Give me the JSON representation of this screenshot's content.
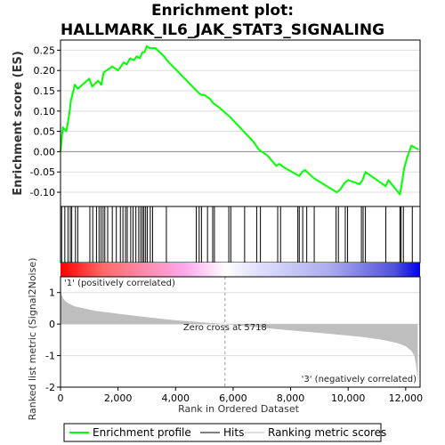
{
  "chart_data": {
    "type": "line",
    "title_line1": "Enrichment plot:",
    "title_line2": "HALLMARK_IL6_JAK_STAT3_SIGNALING",
    "top_panel": {
      "ylabel": "Enrichment score (ES)",
      "ylim": [
        -0.135,
        0.275
      ],
      "yticks": [
        0.25,
        0.2,
        0.15,
        0.1,
        0.05,
        0.0,
        -0.05,
        -0.1
      ],
      "ytick_labels": [
        "0.25",
        "0.20",
        "0.15",
        "0.10",
        "0.05",
        "0.00",
        "-0.05",
        "-0.10"
      ],
      "series_name": "Enrichment profile",
      "color": "#00ff00",
      "x": [
        0,
        80,
        200,
        300,
        360,
        500,
        600,
        1000,
        1100,
        1300,
        1420,
        1500,
        1600,
        1800,
        2000,
        2100,
        2200,
        2300,
        2420,
        2550,
        2650,
        2750,
        2850,
        2920,
        3000,
        3100,
        3300,
        3600,
        3700,
        4800,
        4900,
        5000,
        5200,
        5300,
        5500,
        5900,
        6300,
        6700,
        6900,
        7200,
        7500,
        7600,
        7800,
        8300,
        8400,
        8500,
        8800,
        9600,
        9700,
        9900,
        10000,
        10400,
        10500,
        10600,
        11300,
        11400,
        11800,
        11850,
        11950,
        12050,
        12200,
        12450
      ],
      "y": [
        0.0,
        0.06,
        0.05,
        0.09,
        0.125,
        0.165,
        0.155,
        0.18,
        0.16,
        0.175,
        0.165,
        0.195,
        0.2,
        0.21,
        0.2,
        0.21,
        0.22,
        0.215,
        0.23,
        0.225,
        0.235,
        0.23,
        0.245,
        0.245,
        0.26,
        0.255,
        0.255,
        0.235,
        0.225,
        0.145,
        0.14,
        0.14,
        0.13,
        0.12,
        0.11,
        0.085,
        0.055,
        0.025,
        0.005,
        -0.01,
        -0.035,
        -0.03,
        -0.04,
        -0.06,
        -0.05,
        -0.045,
        -0.065,
        -0.1,
        -0.095,
        -0.075,
        -0.07,
        -0.08,
        -0.07,
        -0.05,
        -0.085,
        -0.07,
        -0.105,
        -0.085,
        -0.04,
        -0.015,
        0.015,
        0.005
      ]
    },
    "hits_panel": {
      "positions": [
        40,
        150,
        260,
        340,
        390,
        520,
        600,
        1020,
        1120,
        1250,
        1340,
        1410,
        1480,
        1540,
        1640,
        1800,
        1940,
        2080,
        2170,
        2260,
        2320,
        2440,
        2520,
        2620,
        2720,
        2790,
        2850,
        2900,
        2960,
        3020,
        3120,
        3200,
        3680,
        4720,
        4820,
        4900,
        5110,
        5290,
        5350,
        5850,
        5920,
        6400,
        6820,
        6950,
        7550,
        7650,
        8250,
        8300,
        8420,
        8560,
        8820,
        9580,
        9660,
        9900,
        9980,
        10460,
        10520,
        10600,
        11310,
        11800,
        11840,
        11920,
        12230
      ]
    },
    "rank_bar": {
      "positive_label": "'1' (positively correlated)",
      "negative_label": "'3' (negatively correlated)",
      "positive_color": "#ff0000",
      "negative_color": "#0000ff"
    },
    "bottom_panel": {
      "ylabel": "Ranked list metric (Signal2Noise)",
      "ylim": [
        -2.0,
        1.5
      ],
      "yticks": [
        1,
        0,
        -1,
        -2
      ],
      "ytick_labels": [
        "1",
        "0",
        "-1",
        "-2"
      ],
      "zero_cross_label": "Zero cross at 5718",
      "zero_cross": 5718,
      "fill_color": "#bebebe",
      "x": [
        0,
        30,
        100,
        200,
        350,
        500,
        800,
        1200,
        2000,
        3000,
        4000,
        5000,
        5718,
        6500,
        7500,
        8500,
        9500,
        10500,
        11200,
        11700,
        12000,
        12200,
        12300,
        12360,
        12400,
        12420
      ],
      "y": [
        1.25,
        0.95,
        0.8,
        0.7,
        0.62,
        0.56,
        0.5,
        0.42,
        0.33,
        0.22,
        0.12,
        0.05,
        0.0,
        -0.07,
        -0.16,
        -0.24,
        -0.32,
        -0.41,
        -0.5,
        -0.6,
        -0.7,
        -0.85,
        -1.0,
        -1.3,
        -1.6,
        -1.9
      ]
    },
    "xlabel": "Rank in Ordered Dataset",
    "xlim": [
      0,
      12500
    ],
    "xticks": [
      0,
      2000,
      4000,
      6000,
      8000,
      10000,
      12000
    ],
    "xtick_labels": [
      "0",
      "2,000",
      "4,000",
      "6,000",
      "8,000",
      "10,000",
      "12,000"
    ],
    "legend": [
      {
        "label": "Enrichment profile",
        "color": "#00ff00"
      },
      {
        "label": "Hits",
        "color": "#000000"
      },
      {
        "label": "Ranking metric scores",
        "color": "#bebebe"
      }
    ]
  }
}
